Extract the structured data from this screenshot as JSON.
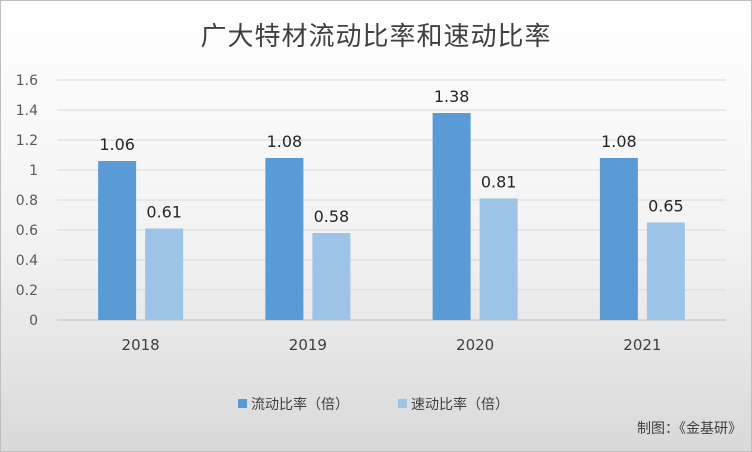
{
  "chart_data": {
    "type": "bar",
    "title": "广大特材流动比率和速动比率",
    "categories": [
      "2018",
      "2019",
      "2020",
      "2021"
    ],
    "series": [
      {
        "name": "流动比率（倍）",
        "color": "#5b9bd5",
        "values": [
          1.06,
          1.08,
          1.38,
          1.08
        ]
      },
      {
        "name": "速动比率（倍）",
        "color": "#9dc3e6",
        "values": [
          0.61,
          0.58,
          0.81,
          0.65
        ]
      }
    ],
    "ylim": [
      0,
      1.6
    ],
    "yticks": [
      "0",
      "0.2",
      "0.4",
      "0.6",
      "0.8",
      "1",
      "1.2",
      "1.4",
      "1.6"
    ],
    "grid": true,
    "legend_position": "bottom",
    "data_labels": [
      [
        "1.06",
        "1.08",
        "1.38",
        "1.08"
      ],
      [
        "0.61",
        "0.58",
        "0.81",
        "0.65"
      ]
    ]
  },
  "credit": "制图：《金基研》"
}
